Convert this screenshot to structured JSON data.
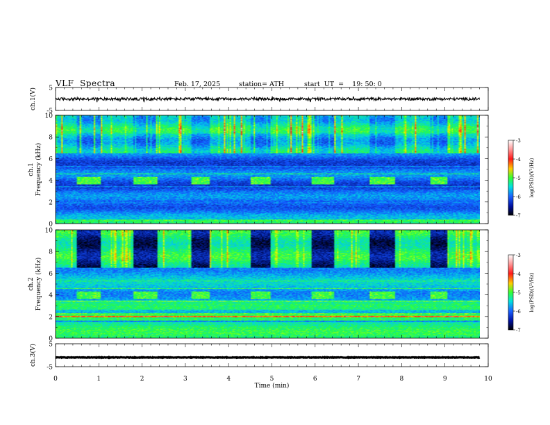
{
  "header": {
    "title": "VLF  Spectra",
    "date": "Feb. 17, 2025",
    "station": "station= ATH",
    "start": "start  UT  =    19: 50: 0"
  },
  "colors": {
    "colormap": [
      "#ffffff",
      "#ff1a1a",
      "#ff8000",
      "#ffff00",
      "#33ff33",
      "#00e0e0",
      "#1a60ff",
      "#0010a0",
      "#000000"
    ]
  },
  "chart_data": [
    {
      "type": "line",
      "name": "ch1-waveform",
      "ylabel": "ch.1(V)",
      "ylim": [
        -5,
        5
      ],
      "yticks": [
        "5",
        "-5"
      ],
      "x_range": [
        0,
        9.8
      ],
      "trace_level": 0,
      "trace_noise_amplitude": 0.6
    },
    {
      "type": "heatmap",
      "name": "ch1-spectrogram",
      "ylabel_line1": "ch.1",
      "ylabel_line2": "Frequency (kHz)",
      "ylim": [
        0,
        10
      ],
      "yticks": [
        "0",
        "2",
        "4",
        "6",
        "8",
        "10"
      ],
      "x_range": [
        0,
        9.8
      ],
      "tone_bursts_min": [
        [
          0.5,
          1.05
        ],
        [
          1.8,
          2.35
        ],
        [
          3.15,
          3.55
        ],
        [
          4.5,
          4.95
        ],
        [
          5.9,
          6.45
        ],
        [
          7.25,
          7.85
        ],
        [
          8.65,
          9.05
        ]
      ],
      "tone_band_khz": [
        3.6,
        4.3
      ],
      "colorbar": {
        "label": "log(PSD)(V²/Hz)",
        "ticks": [
          "-3",
          "-4",
          "-5",
          "-6",
          "-7"
        ],
        "range": [
          -7,
          -3
        ]
      }
    },
    {
      "type": "heatmap",
      "name": "ch2-spectrogram",
      "ylabel_line1": "ch.2",
      "ylabel_line2": "Frequency (kHz)",
      "ylim": [
        0,
        10
      ],
      "yticks": [
        "0",
        "2",
        "4",
        "6",
        "8",
        "10"
      ],
      "x_range": [
        0,
        9.8
      ],
      "tone_bursts_min": [
        [
          0.5,
          1.05
        ],
        [
          1.8,
          2.35
        ],
        [
          3.15,
          3.55
        ],
        [
          4.5,
          4.95
        ],
        [
          5.9,
          6.45
        ],
        [
          7.25,
          7.85
        ],
        [
          8.65,
          9.05
        ]
      ],
      "tone_band_khz": [
        3.6,
        4.3
      ],
      "colorbar": {
        "label": "log(PSD)(V²/Hz)",
        "ticks": [
          "-3",
          "-4",
          "-5",
          "-6",
          "-7"
        ],
        "range": [
          -7,
          -3
        ]
      }
    },
    {
      "type": "line",
      "name": "ch3-waveform",
      "ylabel": "ch.3(V)",
      "ylim": [
        -5,
        5
      ],
      "yticks": [
        "5",
        "-5"
      ],
      "x_range": [
        0,
        9.8
      ],
      "trace_level": -1,
      "trace_noise_amplitude": 0.12
    }
  ],
  "xaxis": {
    "label": "Time  (min)",
    "xlim": [
      0,
      10
    ],
    "ticks": [
      "0",
      "1",
      "2",
      "3",
      "4",
      "5",
      "6",
      "7",
      "8",
      "9",
      "10"
    ]
  }
}
